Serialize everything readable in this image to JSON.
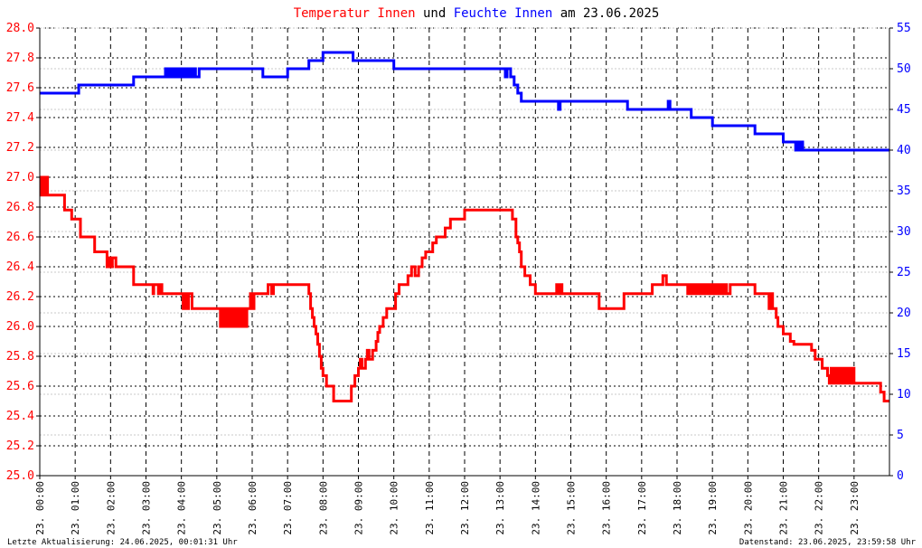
{
  "title": {
    "part1": "Temperatur Innen",
    "part2": " und ",
    "part3": "Feuchte Innen",
    "part4": " am 23.06.2025",
    "color1": "#ff0000",
    "color2": "#000000",
    "color3": "#0000ff"
  },
  "footer": {
    "left": "Letzte Aktualisierung: 24.06.2025, 00:01:31 Uhr",
    "right": "Datenstand: 23.06.2025, 23:59:58 Uhr"
  },
  "chart_data": {
    "type": "line",
    "grid": true,
    "x_ticks": [
      "23. 00:00",
      "23. 01:00",
      "23. 02:00",
      "23. 03:00",
      "23. 04:00",
      "23. 05:00",
      "23. 06:00",
      "23. 07:00",
      "23. 08:00",
      "23. 09:00",
      "23. 10:00",
      "23. 11:00",
      "23. 12:00",
      "23. 13:00",
      "23. 14:00",
      "23. 15:00",
      "23. 16:00",
      "23. 17:00",
      "23. 18:00",
      "23. 19:00",
      "23. 20:00",
      "23. 21:00",
      "23. 22:00",
      "23. 23:00"
    ],
    "xlim_hours": [
      0,
      24
    ],
    "y_left": {
      "ylim": [
        25.0,
        28.0
      ],
      "ticks": [
        "25.0",
        "25.2",
        "25.4",
        "25.6",
        "25.8",
        "26.0",
        "26.2",
        "26.4",
        "26.6",
        "26.8",
        "27.0",
        "27.2",
        "27.4",
        "27.6",
        "27.8",
        "28.0"
      ],
      "color": "#ff0000"
    },
    "y_right": {
      "ylim": [
        0,
        55
      ],
      "ticks": [
        "0",
        "5",
        "10",
        "15",
        "20",
        "25",
        "30",
        "35",
        "40",
        "45",
        "50",
        "55"
      ],
      "color": "#0000ff"
    },
    "series": [
      {
        "name": "Temperatur Innen",
        "axis": "left",
        "color": "#ff0000",
        "x_hours": [
          0.0,
          0.05,
          0.07,
          0.09,
          0.11,
          0.13,
          0.15,
          0.17,
          0.19,
          0.22,
          0.25,
          0.28,
          0.32,
          0.6,
          0.7,
          0.9,
          1.15,
          1.55,
          1.9,
          1.95,
          2.0,
          2.05,
          2.15,
          2.65,
          3.0,
          3.2,
          3.22,
          3.35,
          3.38,
          3.45,
          3.5,
          4.0,
          4.05,
          4.1,
          4.15,
          4.2,
          4.3,
          4.35,
          5.05,
          5.1,
          5.15,
          5.2,
          5.25,
          5.3,
          5.35,
          5.4,
          5.45,
          5.5,
          5.55,
          5.6,
          5.65,
          5.7,
          5.75,
          5.8,
          5.85,
          5.9,
          5.95,
          6.0,
          6.05,
          6.35,
          6.45,
          6.55,
          6.6,
          6.75,
          7.0,
          7.3,
          7.5,
          7.6,
          7.65,
          7.7,
          7.75,
          7.8,
          7.85,
          7.9,
          7.95,
          8.0,
          8.1,
          8.3,
          8.6,
          8.7,
          8.8,
          8.9,
          9.0,
          9.05,
          9.1,
          9.2,
          9.25,
          9.3,
          9.4,
          9.5,
          9.55,
          9.6,
          9.7,
          9.8,
          9.9,
          10.05,
          10.15,
          10.25,
          10.4,
          10.5,
          10.6,
          10.7,
          10.8,
          10.9,
          11.0,
          11.1,
          11.2,
          11.3,
          11.45,
          11.6,
          11.8,
          12.0,
          12.3,
          12.5,
          12.8,
          13.0,
          13.35,
          13.45,
          13.5,
          13.55,
          13.6,
          13.7,
          13.8,
          13.85,
          13.9,
          14.0,
          14.2,
          14.55,
          14.6,
          14.65,
          14.7,
          14.75,
          15.0,
          15.5,
          15.6,
          15.8,
          16.0,
          16.3,
          16.4,
          16.45,
          16.5,
          16.6,
          16.8,
          17.0,
          17.3,
          17.5,
          17.55,
          17.6,
          17.7,
          18.0,
          18.2,
          18.25,
          18.3,
          18.35,
          18.4,
          18.45,
          18.5,
          18.55,
          18.6,
          18.65,
          18.7,
          18.75,
          18.8,
          18.85,
          18.9,
          18.95,
          19.0,
          19.05,
          19.1,
          19.15,
          19.2,
          19.25,
          19.3,
          19.35,
          19.4,
          19.5,
          19.8,
          20.0,
          20.2,
          20.5,
          20.55,
          20.6,
          20.65,
          20.7,
          20.8,
          20.85,
          20.9,
          21.0,
          21.2,
          21.3,
          21.5,
          21.8,
          21.9,
          22.0,
          22.1,
          22.25,
          22.3,
          22.35,
          22.4,
          22.45,
          22.5,
          22.55,
          22.6,
          22.65,
          22.7,
          22.75,
          22.8,
          22.85,
          22.9,
          22.95,
          23.0,
          23.1,
          23.3,
          23.6,
          23.75,
          23.85,
          24.0
        ],
        "values": [
          27.0,
          26.88,
          27.0,
          26.88,
          27.0,
          26.88,
          27.0,
          26.88,
          27.0,
          26.88,
          26.88,
          26.88,
          26.88,
          26.88,
          26.78,
          26.72,
          26.6,
          26.5,
          26.4,
          26.46,
          26.4,
          26.46,
          26.4,
          26.28,
          26.28,
          26.22,
          26.28,
          26.22,
          26.28,
          26.22,
          26.22,
          26.22,
          26.12,
          26.22,
          26.12,
          26.22,
          26.12,
          26.12,
          26.12,
          26.0,
          26.12,
          26.0,
          26.12,
          26.0,
          26.12,
          26.0,
          26.12,
          26.0,
          26.12,
          26.0,
          26.12,
          26.0,
          26.12,
          26.0,
          26.12,
          26.12,
          26.22,
          26.12,
          26.22,
          26.22,
          26.28,
          26.22,
          26.28,
          26.28,
          26.28,
          26.28,
          26.28,
          26.22,
          26.12,
          26.06,
          26.0,
          25.95,
          25.88,
          25.8,
          25.72,
          25.67,
          25.6,
          25.5,
          25.5,
          25.5,
          25.6,
          25.67,
          25.72,
          25.78,
          25.72,
          25.78,
          25.84,
          25.78,
          25.84,
          25.9,
          25.96,
          26.0,
          26.06,
          26.12,
          26.12,
          26.22,
          26.28,
          26.28,
          26.34,
          26.4,
          26.34,
          26.4,
          26.46,
          26.5,
          26.5,
          26.56,
          26.6,
          26.6,
          26.66,
          26.72,
          26.72,
          26.78,
          26.78,
          26.78,
          26.78,
          26.78,
          26.72,
          26.6,
          26.56,
          26.5,
          26.4,
          26.34,
          26.34,
          26.28,
          26.28,
          26.22,
          26.22,
          26.22,
          26.28,
          26.22,
          26.28,
          26.22,
          26.22,
          26.22,
          26.22,
          26.12,
          26.12,
          26.12,
          26.12,
          26.12,
          26.22,
          26.22,
          26.22,
          26.22,
          26.28,
          26.28,
          26.28,
          26.34,
          26.28,
          26.28,
          26.28,
          26.28,
          26.22,
          26.28,
          26.22,
          26.28,
          26.22,
          26.28,
          26.22,
          26.28,
          26.22,
          26.28,
          26.22,
          26.28,
          26.22,
          26.28,
          26.22,
          26.28,
          26.22,
          26.28,
          26.22,
          26.28,
          26.22,
          26.28,
          26.22,
          26.28,
          26.28,
          26.28,
          26.22,
          26.22,
          26.22,
          26.12,
          26.22,
          26.12,
          26.06,
          26.0,
          26.0,
          25.95,
          25.9,
          25.88,
          25.88,
          25.84,
          25.78,
          25.78,
          25.72,
          25.67,
          25.62,
          25.72,
          25.62,
          25.72,
          25.62,
          25.72,
          25.62,
          25.72,
          25.62,
          25.72,
          25.62,
          25.72,
          25.62,
          25.72,
          25.62,
          25.62,
          25.62,
          25.62,
          25.56,
          25.5,
          25.5
        ]
      },
      {
        "name": "Feuchte Innen",
        "axis": "right",
        "color": "#0000ff",
        "x_hours": [
          0.0,
          0.6,
          1.05,
          1.1,
          1.15,
          1.6,
          2.65,
          3.05,
          3.5,
          3.55,
          3.6,
          3.65,
          3.7,
          3.75,
          3.8,
          3.85,
          3.9,
          3.95,
          4.0,
          4.05,
          4.1,
          4.15,
          4.2,
          4.25,
          4.3,
          4.35,
          4.4,
          4.5,
          6.2,
          6.3,
          6.9,
          7.0,
          7.5,
          7.6,
          7.9,
          8.0,
          8.85,
          9.0,
          9.8,
          10.0,
          12.5,
          13.0,
          13.1,
          13.15,
          13.2,
          13.3,
          13.4,
          13.5,
          13.6,
          13.7,
          14.0,
          14.6,
          14.65,
          14.7,
          15.0,
          16.5,
          16.6,
          17.0,
          17.5,
          17.7,
          17.75,
          17.8,
          17.9,
          18.0,
          18.3,
          18.4,
          18.9,
          19.0,
          20.1,
          20.2,
          20.5,
          20.9,
          21.0,
          21.3,
          21.35,
          21.4,
          21.45,
          21.5,
          21.55,
          21.6,
          22.0,
          23.0,
          24.0
        ],
        "values": [
          47,
          47,
          47,
          48,
          48,
          48,
          49,
          49,
          49,
          50,
          49,
          50,
          49,
          50,
          49,
          50,
          49,
          50,
          49,
          50,
          49,
          50,
          49,
          50,
          49,
          50,
          49,
          50,
          50,
          49,
          49,
          50,
          50,
          51,
          51,
          52,
          51,
          51,
          51,
          50,
          50,
          50,
          50,
          49,
          50,
          49,
          48,
          47,
          46,
          46,
          46,
          46,
          45,
          46,
          46,
          46,
          45,
          45,
          45,
          45,
          46,
          45,
          45,
          45,
          45,
          44,
          44,
          43,
          43,
          42,
          42,
          42,
          41,
          41,
          40,
          41,
          40,
          41,
          40,
          40,
          40,
          40,
          40
        ]
      }
    ]
  }
}
